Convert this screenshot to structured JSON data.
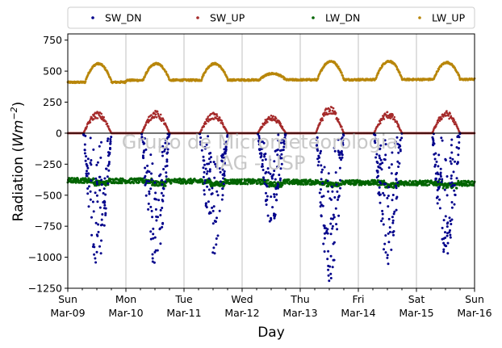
{
  "chart_data": {
    "type": "scatter",
    "xlabel": "Day",
    "ylabel": "Radiation (",
    "ylabel_unit_base": "Wm",
    "ylabel_unit_exp": "−2",
    "ylabel_close": ")",
    "ylim": [
      -1250,
      800
    ],
    "xlim": [
      0,
      7
    ],
    "yticks": [
      750,
      500,
      250,
      0,
      -250,
      -500,
      -750,
      -1000,
      -1250
    ],
    "ytick_labels": [
      "750",
      "500",
      "250",
      "0",
      "−250",
      "−500",
      "−750",
      "−1000",
      "−1250"
    ],
    "xticks": [
      0,
      1,
      2,
      3,
      4,
      5,
      6,
      7
    ],
    "xtick_labels": [
      {
        "day": "Sun",
        "date": "Mar-09"
      },
      {
        "day": "Mon",
        "date": "Mar-10"
      },
      {
        "day": "Tue",
        "date": "Mar-11"
      },
      {
        "day": "Wed",
        "date": "Mar-12"
      },
      {
        "day": "Thu",
        "date": "Mar-13"
      },
      {
        "day": "Fri",
        "date": "Mar-14"
      },
      {
        "day": "Sat",
        "date": "Mar-15"
      },
      {
        "day": "Sun",
        "date": "Mar-16"
      }
    ],
    "grid": "vertical",
    "legend_position": "top",
    "watermark": [
      "Grupo de Micrometeorologia",
      "IAG - USP"
    ],
    "series": [
      {
        "name": "SW_DN",
        "color": "#00008b",
        "daily_noon_minimum": [
          -1080,
          -1100,
          -990,
          -730,
          -1210,
          -1060,
          -1010
        ]
      },
      {
        "name": "SW_UP",
        "color": "#a52a2a",
        "daily_noon_maximum": [
          160,
          165,
          150,
          130,
          200,
          160,
          165
        ]
      },
      {
        "name": "LW_DN",
        "color": "#006400",
        "typical_range": [
          -440,
          -360
        ]
      },
      {
        "name": "LW_UP",
        "color": "#b8860b",
        "night_baseline": [
          410,
          440
        ],
        "daily_peak": [
          560,
          560,
          560,
          480,
          580,
          580,
          570
        ]
      }
    ]
  }
}
